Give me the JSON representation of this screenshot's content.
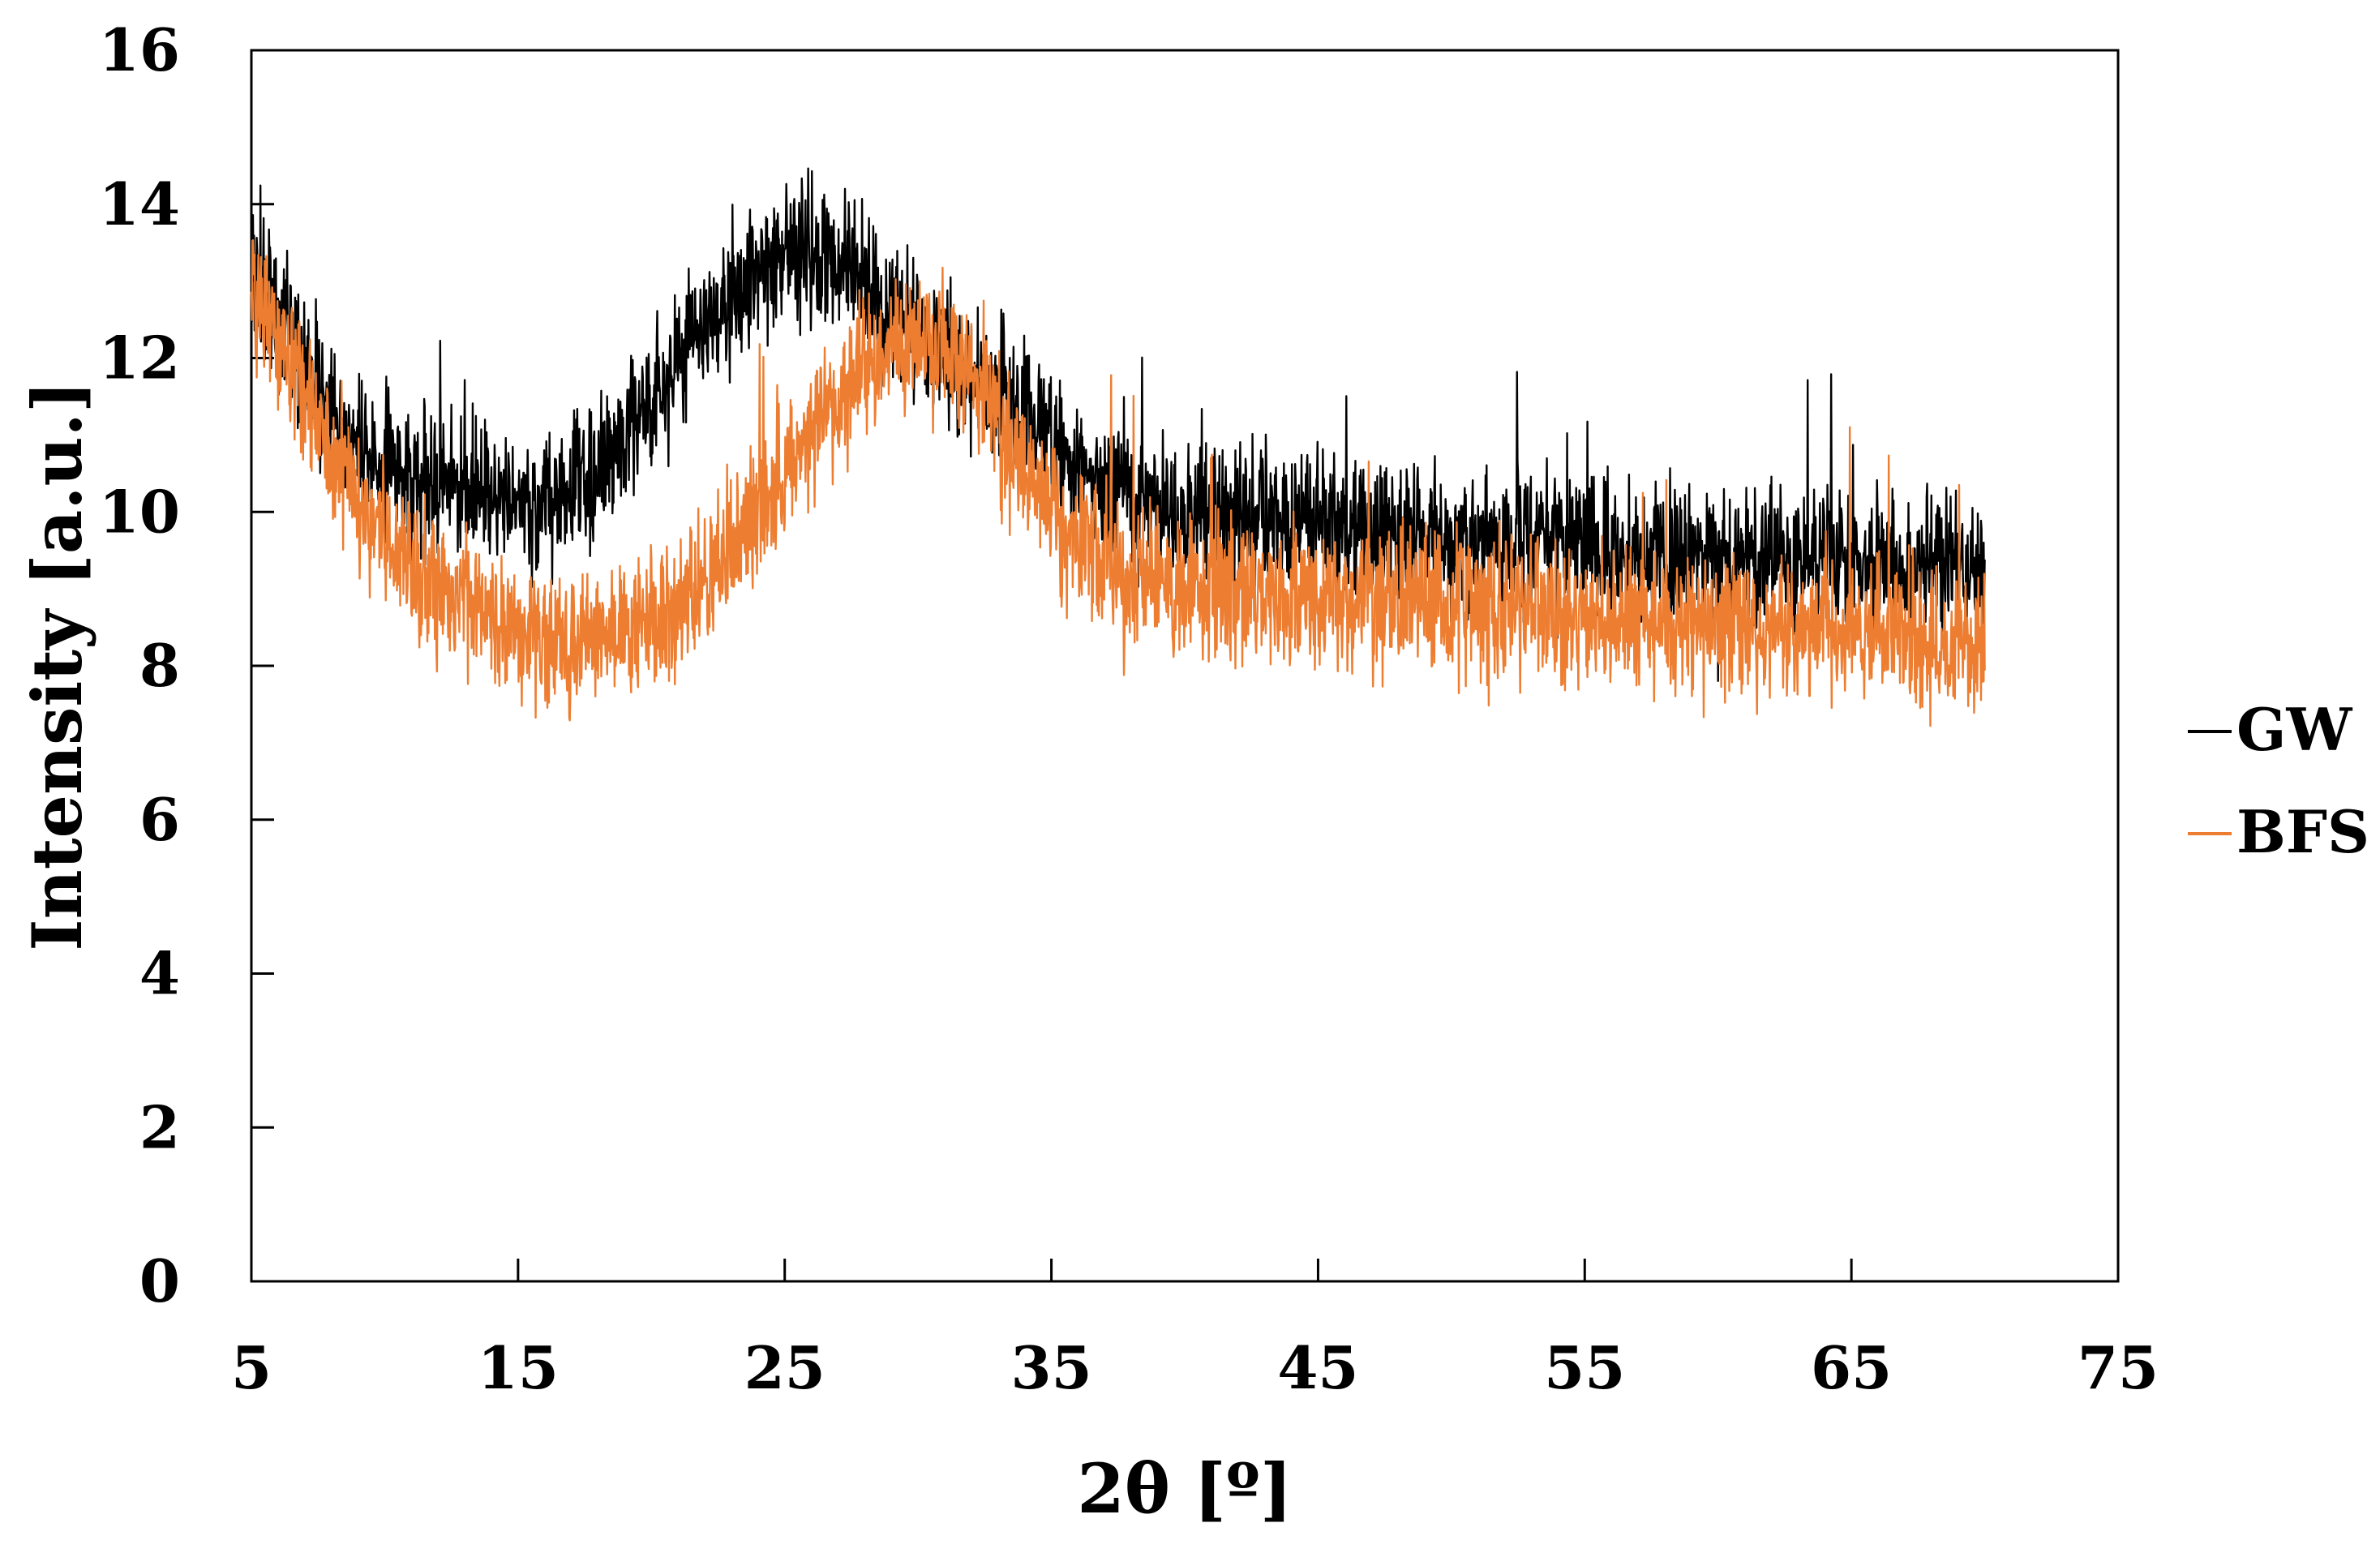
{
  "chart_data": {
    "type": "line",
    "title": "",
    "xlabel": "2θ [º]",
    "ylabel": "Intensity [a.u.]",
    "xlim": [
      5,
      75
    ],
    "ylim": [
      0,
      16
    ],
    "x_ticks": [
      5,
      15,
      25,
      35,
      45,
      55,
      65,
      75
    ],
    "y_ticks": [
      0,
      2,
      4,
      6,
      8,
      10,
      12,
      14,
      16
    ],
    "x_tick_labels": [
      "5",
      "15",
      "25",
      "35",
      "45",
      "55",
      "65",
      "75"
    ],
    "y_tick_labels": [
      "0",
      "2",
      "4",
      "6",
      "8",
      "10",
      "12",
      "14",
      "16"
    ],
    "grid": false,
    "legend_position": "right",
    "series": [
      {
        "name": "GW",
        "color": "#000000",
        "x": [
          5,
          6,
          7,
          8,
          9,
          10,
          11,
          12,
          13,
          14,
          15,
          16,
          17,
          18,
          19,
          20,
          21,
          22,
          23,
          24,
          25,
          26,
          27,
          28,
          29,
          30,
          31,
          32,
          33,
          34,
          35,
          36,
          37,
          38,
          40,
          42,
          44,
          46,
          48,
          50,
          52,
          54,
          56,
          58,
          60,
          62,
          64,
          66,
          68,
          69,
          70
        ],
        "y": [
          13.0,
          12.5,
          11.8,
          11.2,
          10.8,
          10.6,
          10.5,
          10.4,
          10.3,
          10.2,
          10.1,
          10.1,
          10.2,
          10.5,
          10.9,
          11.4,
          11.9,
          12.4,
          12.8,
          13.1,
          13.3,
          13.4,
          13.3,
          13.0,
          12.6,
          12.4,
          12.0,
          11.7,
          11.5,
          11.2,
          10.9,
          10.6,
          10.4,
          10.2,
          10.0,
          9.9,
          9.9,
          9.8,
          9.8,
          9.7,
          9.6,
          9.6,
          9.5,
          9.5,
          9.4,
          9.4,
          9.4,
          9.3,
          9.3,
          9.3,
          9.2
        ]
      },
      {
        "name": "BFS",
        "color": "#ED7D31",
        "x": [
          5,
          6,
          7,
          8,
          9,
          10,
          11,
          12,
          13,
          14,
          15,
          16,
          17,
          18,
          19,
          20,
          21,
          22,
          23,
          24,
          25,
          26,
          27,
          28,
          29,
          30,
          31,
          32,
          33,
          34,
          35,
          36,
          37,
          38,
          40,
          42,
          44,
          46,
          48,
          50,
          52,
          54,
          56,
          58,
          60,
          62,
          64,
          66,
          68,
          69,
          70
        ],
        "y": [
          13.0,
          12.3,
          11.5,
          10.8,
          10.2,
          9.7,
          9.3,
          9.0,
          8.8,
          8.6,
          8.5,
          8.4,
          8.4,
          8.4,
          8.5,
          8.6,
          8.8,
          9.1,
          9.5,
          10.0,
          10.5,
          11.0,
          11.5,
          11.9,
          12.2,
          12.3,
          12.1,
          11.7,
          11.1,
          10.5,
          10.0,
          9.6,
          9.3,
          9.1,
          9.0,
          8.9,
          8.9,
          8.9,
          8.8,
          8.8,
          8.7,
          8.7,
          8.6,
          8.6,
          8.5,
          8.5,
          8.4,
          8.4,
          8.3,
          8.3,
          8.2
        ]
      }
    ]
  }
}
